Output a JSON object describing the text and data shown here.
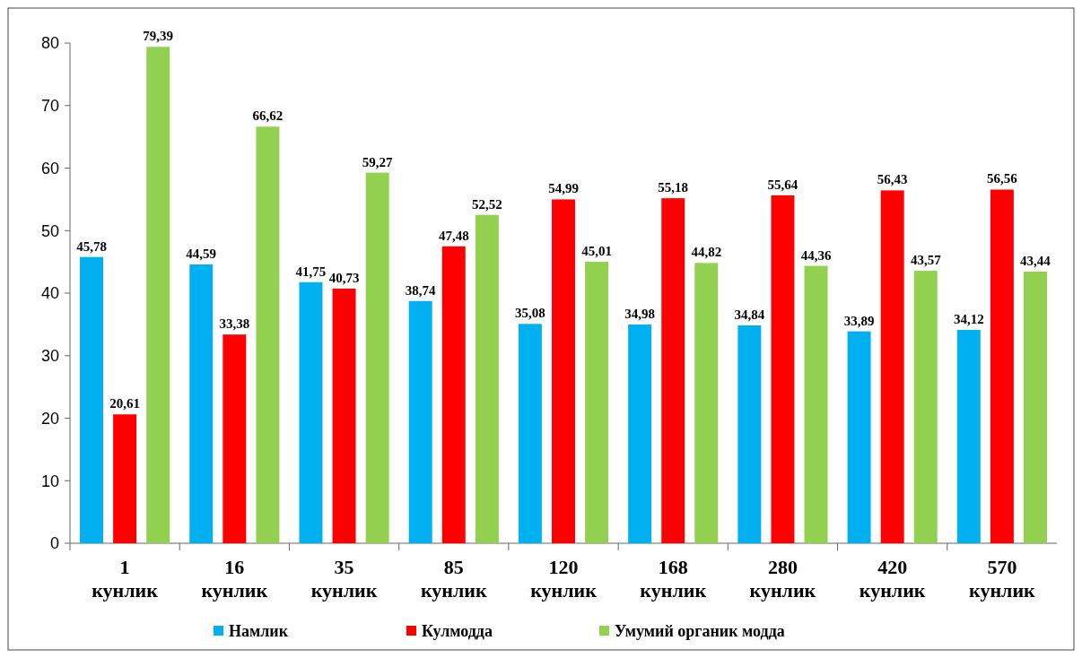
{
  "chart_data": {
    "type": "bar",
    "categories": [
      "1 кунлик",
      "16 кунлик",
      "35 кунлик",
      "85 кунлик",
      "120 кунлик",
      "168 кунлик",
      "280 кунлик",
      "420 кунлик",
      "570 кунлик"
    ],
    "series": [
      {
        "name": "Намлик",
        "color": "#00b0f0",
        "values": [
          45.78,
          44.59,
          41.75,
          38.74,
          35.08,
          34.98,
          34.84,
          33.89,
          34.12
        ],
        "value_labels": [
          "45,78",
          "44,59",
          "41,75",
          "38,74",
          "35,08",
          "34,98",
          "34,84",
          "33,89",
          "34,12"
        ]
      },
      {
        "name": "Кулмодда",
        "color": "#ff0000",
        "values": [
          20.61,
          33.38,
          40.73,
          47.48,
          54.99,
          55.18,
          55.64,
          56.43,
          56.56
        ],
        "value_labels": [
          "20,61",
          "33,38",
          "40,73",
          "47,48",
          "54,99",
          "55,18",
          "55,64",
          "56,43",
          "56,56"
        ]
      },
      {
        "name": "Умумий органик  модда",
        "color": "#92d050",
        "values": [
          79.39,
          66.62,
          59.27,
          52.52,
          45.01,
          44.82,
          44.36,
          43.57,
          43.44
        ],
        "value_labels": [
          "79,39",
          "66,62",
          "59,27",
          "52,52",
          "45,01",
          "44,82",
          "44,36",
          "43,57",
          "43,44"
        ]
      }
    ],
    "ylim": [
      0,
      80
    ],
    "yticks": [
      0,
      10,
      20,
      30,
      40,
      50,
      60,
      70,
      80
    ],
    "grid": false,
    "legend": "bottom"
  }
}
